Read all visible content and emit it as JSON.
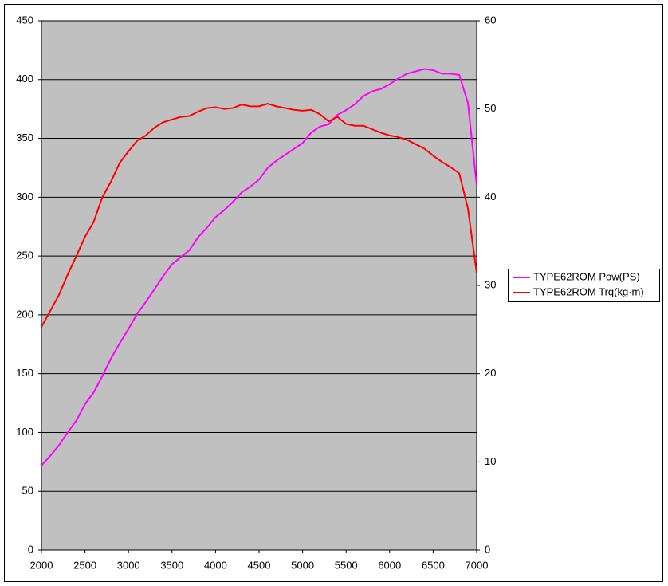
{
  "chart_data": {
    "type": "line",
    "x": [
      2000,
      2100,
      2200,
      2300,
      2400,
      2500,
      2600,
      2700,
      2800,
      2900,
      3000,
      3100,
      3200,
      3300,
      3400,
      3500,
      3600,
      3700,
      3800,
      3900,
      4000,
      4100,
      4200,
      4300,
      4400,
      4500,
      4600,
      4700,
      4800,
      4900,
      5000,
      5100,
      5200,
      5300,
      5400,
      5500,
      5600,
      5700,
      5800,
      5900,
      6000,
      6100,
      6200,
      6300,
      6400,
      6500,
      6600,
      6700,
      6800,
      6900,
      7000
    ],
    "series": [
      {
        "name": "TYPE62ROM Pow(PS)",
        "color": "#ff00ff",
        "values": [
          72,
          80,
          89,
          100,
          110,
          124,
          134,
          148,
          163,
          176,
          188,
          201,
          211,
          222,
          233,
          243,
          249,
          255,
          266,
          274,
          283,
          289,
          296,
          304,
          309,
          315,
          325,
          331,
          336,
          341,
          346,
          355,
          360,
          362,
          370,
          374,
          379,
          386,
          390,
          392,
          396,
          401,
          405,
          407,
          409,
          408,
          405,
          405,
          404,
          380,
          310
        ]
      },
      {
        "name": "TYPE62ROM Trq(kg·m)",
        "color": "#ff0000",
        "axis": "y2",
        "values": [
          25.3,
          27.1,
          28.9,
          31.2,
          33.3,
          35.5,
          37.2,
          40.0,
          41.8,
          43.9,
          45.2,
          46.4,
          47.0,
          47.9,
          48.5,
          48.8,
          49.1,
          49.2,
          49.7,
          50.1,
          50.2,
          50.0,
          50.1,
          50.5,
          50.3,
          50.3,
          50.6,
          50.3,
          50.1,
          49.9,
          49.8,
          49.9,
          49.4,
          48.6,
          49.1,
          48.3,
          48.1,
          48.1,
          47.7,
          47.3,
          47.0,
          46.8,
          46.5,
          46.0,
          45.5,
          44.7,
          44.0,
          43.4,
          42.7,
          38.7,
          31.4
        ]
      }
    ],
    "xlim": [
      2000,
      7000
    ],
    "xticks": [
      2000,
      2500,
      3000,
      3500,
      4000,
      4500,
      5000,
      5500,
      6000,
      6500,
      7000
    ],
    "ylim": [
      0,
      450
    ],
    "yticks": [
      0,
      50,
      100,
      150,
      200,
      250,
      300,
      350,
      400,
      450
    ],
    "y2lim": [
      0,
      60
    ],
    "y2ticks": [
      0,
      10,
      20,
      30,
      40,
      50,
      60
    ],
    "grid": true,
    "legend": "right"
  }
}
